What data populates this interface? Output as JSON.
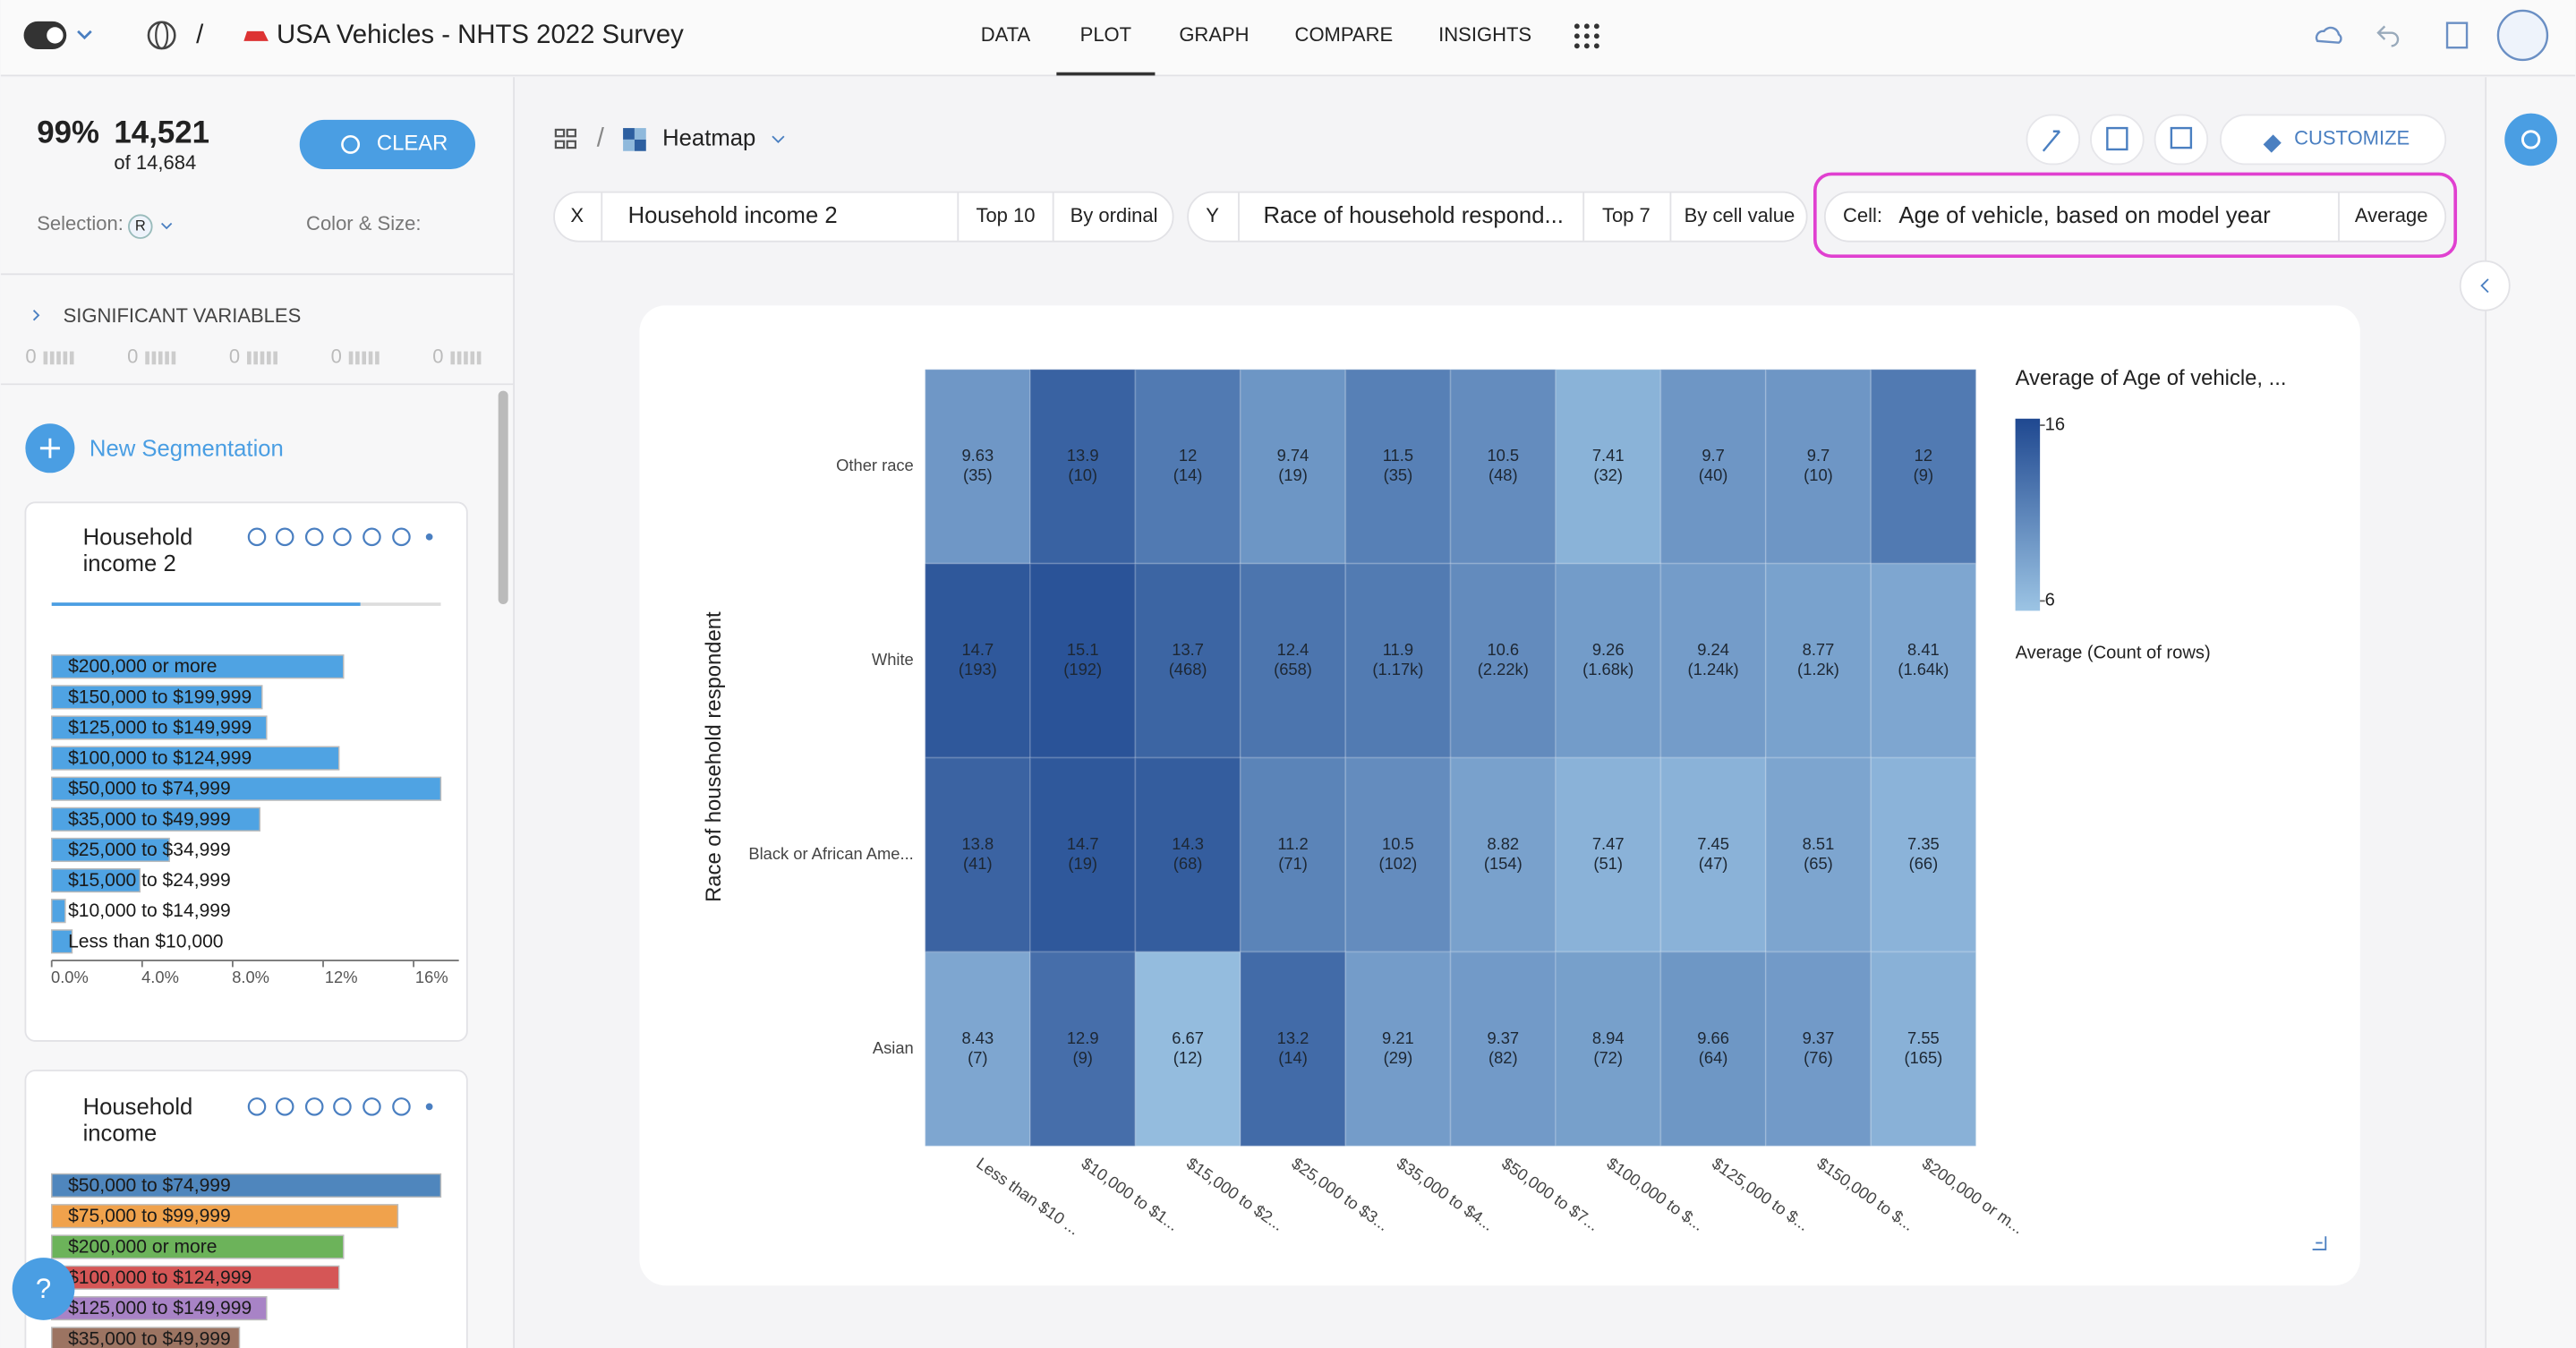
{
  "app": {
    "title": "USA Vehicles - NHTS 2022 Survey",
    "tabs": [
      "DATA",
      "PLOT",
      "GRAPH",
      "COMPARE",
      "INSIGHTS"
    ],
    "selection": {
      "percent": "99%",
      "count": "14,521",
      "total": "of 14,684",
      "clear": "CLEAR",
      "selection_label": "Selection:",
      "selection_badge": "R",
      "color_size": "Color & Size:"
    },
    "significant": {
      "title": "SIGNIFICANT VARIABLES",
      "counts": [
        "0",
        "0",
        "0",
        "0",
        "0"
      ]
    },
    "new_segmentation": "New Segmentation",
    "cards": [
      {
        "title": [
          "Household",
          "income 2"
        ]
      },
      {
        "title": [
          "Household",
          "income"
        ]
      }
    ],
    "plot": {
      "name": "Heatmap",
      "customize": "CUSTOMIZE"
    },
    "encoding": {
      "x": {
        "axis": "X",
        "field": "Household income 2",
        "top": "Top 10",
        "order": "By ordinal"
      },
      "y": {
        "axis": "Y",
        "field": "Race of household respond...",
        "top": "Top 7",
        "order": "By cell value"
      },
      "cell": {
        "label": "Cell:",
        "field": "Age of vehicle, based on model year",
        "agg": "Average"
      }
    },
    "help": "?"
  },
  "chart_data": [
    {
      "type": "heatmap",
      "y_label": "Race of household respondent",
      "categories": [
        "Less than $10 ...",
        "$10,000 to $1...",
        "$15,000 to $2...",
        "$25,000 to $3...",
        "$35,000 to $4...",
        "$50,000 to $7...",
        "$100,000 to $...",
        "$125,000 to $...",
        "$150,000 to $...",
        "$200,000 or m..."
      ],
      "rows": [
        "Other race",
        "White",
        "Black or African Ame...",
        "Asian"
      ],
      "values": [
        [
          9.63,
          13.9,
          12,
          9.74,
          11.5,
          10.5,
          7.41,
          9.7,
          9.7,
          12
        ],
        [
          14.7,
          15.1,
          13.7,
          12.4,
          11.9,
          10.6,
          9.26,
          9.24,
          8.77,
          8.41
        ],
        [
          13.8,
          14.7,
          14.3,
          11.2,
          10.5,
          8.82,
          7.47,
          7.45,
          8.51,
          7.35
        ],
        [
          8.43,
          12.9,
          6.67,
          13.2,
          9.21,
          9.37,
          8.94,
          9.66,
          9.37,
          7.55
        ]
      ],
      "count_labels": [
        [
          "(35)",
          "(10)",
          "(14)",
          "(19)",
          "(35)",
          "(48)",
          "(32)",
          "(40)",
          "(10)",
          "(9)"
        ],
        [
          "(193)",
          "(192)",
          "(468)",
          "(658)",
          "(1.17k)",
          "(2.22k)",
          "(1.68k)",
          "(1.24k)",
          "(1.2k)",
          "(1.64k)"
        ],
        [
          "(41)",
          "(19)",
          "(68)",
          "(71)",
          "(102)",
          "(154)",
          "(51)",
          "(47)",
          "(65)",
          "(66)"
        ],
        [
          "(7)",
          "(9)",
          "(12)",
          "(14)",
          "(29)",
          "(82)",
          "(72)",
          "(64)",
          "(76)",
          "(165)"
        ]
      ],
      "legend_title": "Average of Age of vehicle, ...",
      "legend_subtitle": "Average (Count of rows)",
      "colorlim": [
        6,
        16
      ],
      "colorticks": [
        16,
        6
      ],
      "colors": [
        "#9cc4e4",
        "#1f4890"
      ]
    },
    {
      "type": "barh",
      "categories": [
        "$200,000 or more",
        "$150,000 to $199,999",
        "$125,000 to $149,999",
        "$100,000 to $124,999",
        "$50,000 to $74,999",
        "$35,000 to $49,999",
        "$25,000 to $34,999",
        "$15,000 to $24,999",
        "$10,000 to $14,999",
        "Less than $10,000"
      ],
      "values": [
        12.9,
        9.3,
        9.5,
        12.7,
        17.2,
        9.2,
        5.2,
        3.9,
        0.6,
        0.9
      ],
      "color": "#4fa3e3",
      "xlim": [
        0,
        18
      ],
      "xticks": [
        {
          "value": 0,
          "label": "0.0%"
        },
        {
          "value": 4,
          "label": "4.0%"
        },
        {
          "value": 8,
          "label": "8.0%"
        },
        {
          "value": 12,
          "label": "12%"
        },
        {
          "value": 16,
          "label": "16%"
        }
      ]
    },
    {
      "type": "barh",
      "categories": [
        "$50,000 to $74,999",
        "$75,000 to $99,999",
        "$200,000 or more",
        "$100,000 to $124,999",
        "$125,000 to $149,999",
        "$35,000 to $49,999"
      ],
      "values": [
        17.2,
        15.3,
        12.9,
        12.7,
        9.5,
        8.3
      ],
      "colors": [
        "#4f86bd",
        "#f0a24c",
        "#6cb35a",
        "#d55656",
        "#a883c6",
        "#9c7462"
      ],
      "xlim": [
        0,
        18
      ]
    }
  ]
}
